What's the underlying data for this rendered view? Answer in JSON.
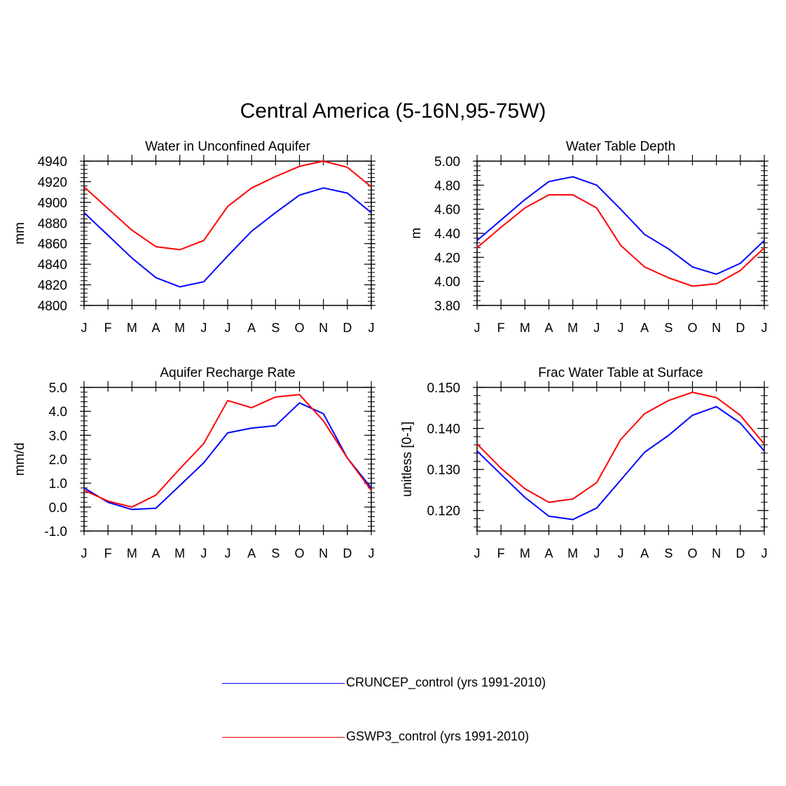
{
  "title": "Central America (5-16N,95-75W)",
  "colors": {
    "series_1": "#0000ff",
    "series_2": "#ff0000",
    "axis": "#000000"
  },
  "legend": [
    {
      "label": "CRUNCEP_control (yrs 1991-2010)",
      "color": "#0000ff"
    },
    {
      "label": "GSWP3_control (yrs 1991-2010)",
      "color": "#ff0000"
    }
  ],
  "chart_data": [
    {
      "type": "line",
      "title": "Water in Unconfined Aquifer",
      "ylabel": "mm",
      "xlabel": "",
      "categories": [
        "J",
        "F",
        "M",
        "A",
        "M",
        "J",
        "J",
        "A",
        "S",
        "O",
        "N",
        "D",
        "J"
      ],
      "ylim": [
        4800,
        4940
      ],
      "yticks": [
        "4800",
        "4820",
        "4840",
        "4860",
        "4880",
        "4900",
        "4920",
        "4940"
      ],
      "grid": false,
      "series": [
        {
          "name": "CRUNCEP_control (yrs 1991-2010)",
          "color": "#0000ff",
          "values": [
            4890,
            4868,
            4846,
            4827,
            4818,
            4823,
            4848,
            4872,
            4890,
            4907,
            4914,
            4909,
            4890
          ]
        },
        {
          "name": "GSWP3_control (yrs 1991-2010)",
          "color": "#ff0000",
          "values": [
            4915,
            4894,
            4873,
            4857,
            4854,
            4863,
            4896,
            4914,
            4925,
            4935,
            4940,
            4934,
            4915
          ]
        }
      ]
    },
    {
      "type": "line",
      "title": "Water Table Depth",
      "ylabel": "m",
      "xlabel": "",
      "categories": [
        "J",
        "F",
        "M",
        "A",
        "M",
        "J",
        "J",
        "A",
        "S",
        "O",
        "N",
        "D",
        "J"
      ],
      "ylim": [
        3.8,
        5.0
      ],
      "yticks": [
        "3.80",
        "4.00",
        "4.20",
        "4.40",
        "4.60",
        "4.80",
        "5.00"
      ],
      "grid": false,
      "series": [
        {
          "name": "CRUNCEP_control (yrs 1991-2010)",
          "color": "#0000ff",
          "values": [
            4.34,
            4.51,
            4.68,
            4.83,
            4.87,
            4.8,
            4.6,
            4.39,
            4.27,
            4.12,
            4.06,
            4.15,
            4.34
          ]
        },
        {
          "name": "GSWP3_control (yrs 1991-2010)",
          "color": "#ff0000",
          "values": [
            4.28,
            4.45,
            4.61,
            4.72,
            4.72,
            4.61,
            4.3,
            4.12,
            4.03,
            3.96,
            3.98,
            4.09,
            4.28
          ]
        }
      ]
    },
    {
      "type": "line",
      "title": "Aquifer Recharge Rate",
      "ylabel": "mm/d",
      "xlabel": "",
      "categories": [
        "J",
        "F",
        "M",
        "A",
        "M",
        "J",
        "J",
        "A",
        "S",
        "O",
        "N",
        "D",
        "J"
      ],
      "ylim": [
        -1.0,
        5.0
      ],
      "yticks": [
        "-1.0",
        "0.0",
        "1.0",
        "2.0",
        "3.0",
        "4.0",
        "5.0"
      ],
      "grid": false,
      "series": [
        {
          "name": "CRUNCEP_control (yrs 1991-2010)",
          "color": "#0000ff",
          "values": [
            0.8,
            0.2,
            -0.1,
            -0.05,
            0.9,
            1.85,
            3.1,
            3.3,
            3.4,
            4.35,
            3.9,
            2.05,
            0.8
          ]
        },
        {
          "name": "GSWP3_control (yrs 1991-2010)",
          "color": "#ff0000",
          "values": [
            0.7,
            0.25,
            0.0,
            0.5,
            1.6,
            2.65,
            4.45,
            4.15,
            4.6,
            4.7,
            3.6,
            2.05,
            0.7
          ]
        }
      ]
    },
    {
      "type": "line",
      "title": "Frac Water Table at Surface",
      "ylabel": "unitless [0-1]",
      "xlabel": "",
      "categories": [
        "J",
        "F",
        "M",
        "A",
        "M",
        "J",
        "J",
        "A",
        "S",
        "O",
        "N",
        "D",
        "J"
      ],
      "ylim": [
        0.115,
        0.15
      ],
      "yticks": [
        "0.120",
        "0.130",
        "0.140",
        "0.150"
      ],
      "grid": false,
      "series": [
        {
          "name": "CRUNCEP_control (yrs 1991-2010)",
          "color": "#0000ff",
          "values": [
            0.1345,
            0.1288,
            0.1232,
            0.1186,
            0.1178,
            0.1206,
            0.1274,
            0.1342,
            0.1383,
            0.1432,
            0.1453,
            0.1413,
            0.1345
          ]
        },
        {
          "name": "GSWP3_control (yrs 1991-2010)",
          "color": "#ff0000",
          "values": [
            0.1362,
            0.1303,
            0.1253,
            0.122,
            0.1228,
            0.1268,
            0.1373,
            0.1436,
            0.1468,
            0.1488,
            0.1475,
            0.1432,
            0.1362
          ]
        }
      ]
    }
  ]
}
